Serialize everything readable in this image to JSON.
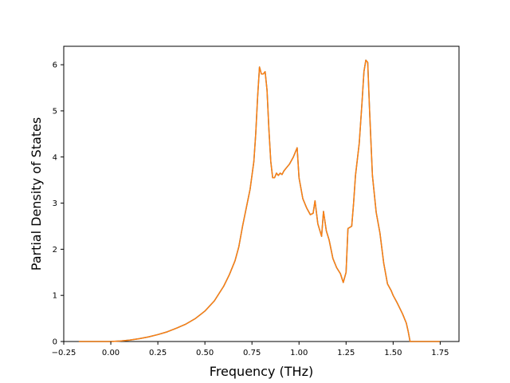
{
  "chart_data": {
    "type": "line",
    "title": "",
    "xlabel": "Frequency (THz)",
    "ylabel": "Partial Density of States",
    "xlim": [
      -0.25,
      1.85
    ],
    "ylim": [
      0,
      6.4
    ],
    "x_ticks": [
      -0.25,
      0.0,
      0.25,
      0.5,
      0.75,
      1.0,
      1.25,
      1.5,
      1.75
    ],
    "x_tick_labels": [
      "−0.25",
      "0.00",
      "0.25",
      "0.50",
      "0.75",
      "1.00",
      "1.25",
      "1.50",
      "1.75"
    ],
    "y_ticks": [
      0,
      1,
      2,
      3,
      4,
      5,
      6
    ],
    "y_tick_labels": [
      "0",
      "1",
      "2",
      "3",
      "4",
      "5",
      "6"
    ],
    "grid": false,
    "legend": "none",
    "colors": {
      "primary": "#1f77b4",
      "secondary": "#ff7f0e"
    },
    "series": [
      {
        "color": "#1f77b4",
        "x": [
          -0.17,
          0.0,
          0.05,
          0.1,
          0.15,
          0.2,
          0.25,
          0.3,
          0.35,
          0.4,
          0.45,
          0.5,
          0.55,
          0.6,
          0.63,
          0.66,
          0.68,
          0.7,
          0.72,
          0.74,
          0.76,
          0.77,
          0.78,
          0.79,
          0.8,
          0.81,
          0.82,
          0.83,
          0.84,
          0.85,
          0.86,
          0.87,
          0.88,
          0.89,
          0.9,
          0.91,
          0.92,
          0.93,
          0.95,
          0.97,
          0.985,
          0.99,
          1.0,
          1.02,
          1.04,
          1.06,
          1.075,
          1.085,
          1.1,
          1.12,
          1.13,
          1.145,
          1.16,
          1.18,
          1.2,
          1.22,
          1.235,
          1.25,
          1.26,
          1.28,
          1.29,
          1.3,
          1.32,
          1.335,
          1.345,
          1.355,
          1.365,
          1.375,
          1.39,
          1.41,
          1.43,
          1.45,
          1.47,
          1.49,
          1.5,
          1.52,
          1.55,
          1.57,
          1.58,
          1.59,
          1.6,
          1.62,
          1.75
        ],
        "y": [
          0.0,
          0.0,
          0.01,
          0.03,
          0.06,
          0.1,
          0.15,
          0.21,
          0.29,
          0.38,
          0.5,
          0.66,
          0.88,
          1.2,
          1.45,
          1.75,
          2.05,
          2.5,
          2.9,
          3.3,
          3.9,
          4.5,
          5.3,
          5.95,
          5.8,
          5.8,
          5.85,
          5.45,
          4.6,
          3.9,
          3.55,
          3.55,
          3.65,
          3.6,
          3.65,
          3.62,
          3.7,
          3.75,
          3.85,
          4.0,
          4.15,
          4.2,
          3.55,
          3.1,
          2.9,
          2.75,
          2.78,
          3.05,
          2.55,
          2.28,
          2.82,
          2.4,
          2.2,
          1.8,
          1.6,
          1.47,
          1.28,
          1.5,
          2.45,
          2.5,
          3.0,
          3.6,
          4.3,
          5.2,
          5.85,
          6.1,
          6.05,
          5.0,
          3.6,
          2.8,
          2.35,
          1.7,
          1.25,
          1.1,
          1.0,
          0.85,
          0.6,
          0.4,
          0.22,
          0.0,
          0.0,
          0.0,
          0.0
        ]
      },
      {
        "color": "#ff7f0e",
        "x": [
          -0.17,
          0.0,
          0.05,
          0.1,
          0.15,
          0.2,
          0.25,
          0.3,
          0.35,
          0.4,
          0.45,
          0.5,
          0.55,
          0.6,
          0.63,
          0.66,
          0.68,
          0.7,
          0.72,
          0.74,
          0.76,
          0.77,
          0.78,
          0.79,
          0.8,
          0.81,
          0.82,
          0.83,
          0.84,
          0.85,
          0.86,
          0.87,
          0.88,
          0.89,
          0.9,
          0.91,
          0.92,
          0.93,
          0.95,
          0.97,
          0.985,
          0.99,
          1.0,
          1.02,
          1.04,
          1.06,
          1.075,
          1.085,
          1.1,
          1.12,
          1.13,
          1.145,
          1.16,
          1.18,
          1.2,
          1.22,
          1.235,
          1.25,
          1.26,
          1.28,
          1.29,
          1.3,
          1.32,
          1.335,
          1.345,
          1.355,
          1.365,
          1.375,
          1.39,
          1.41,
          1.43,
          1.45,
          1.47,
          1.49,
          1.5,
          1.52,
          1.55,
          1.57,
          1.58,
          1.59,
          1.6,
          1.62,
          1.75
        ],
        "y": [
          0.0,
          0.0,
          0.01,
          0.03,
          0.06,
          0.1,
          0.15,
          0.21,
          0.29,
          0.38,
          0.5,
          0.66,
          0.88,
          1.2,
          1.45,
          1.75,
          2.05,
          2.5,
          2.9,
          3.3,
          3.9,
          4.5,
          5.3,
          5.95,
          5.8,
          5.8,
          5.85,
          5.45,
          4.6,
          3.9,
          3.55,
          3.55,
          3.65,
          3.6,
          3.65,
          3.62,
          3.7,
          3.75,
          3.85,
          4.0,
          4.15,
          4.2,
          3.55,
          3.1,
          2.9,
          2.75,
          2.78,
          3.05,
          2.55,
          2.28,
          2.82,
          2.4,
          2.2,
          1.8,
          1.6,
          1.47,
          1.28,
          1.5,
          2.45,
          2.5,
          3.0,
          3.6,
          4.3,
          5.2,
          5.85,
          6.1,
          6.05,
          5.0,
          3.6,
          2.8,
          2.35,
          1.7,
          1.25,
          1.1,
          1.0,
          0.85,
          0.6,
          0.4,
          0.22,
          0.0,
          0.0,
          0.0,
          0.0
        ]
      }
    ]
  }
}
